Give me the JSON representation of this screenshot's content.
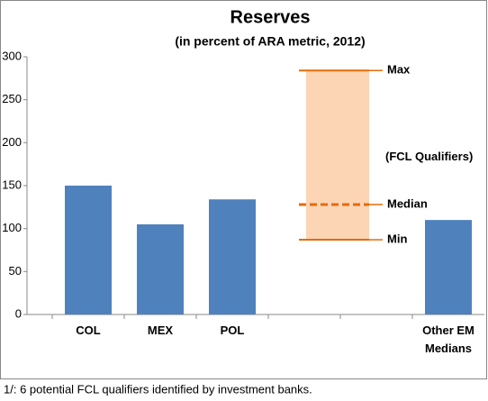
{
  "chart_data": {
    "type": "bar",
    "title": "Reserves",
    "subtitle": "(in percent of  ARA metric, 2012)",
    "categories": [
      "COL",
      "MEX",
      "POL",
      null,
      null,
      "Other EM Medians"
    ],
    "values": [
      150,
      105,
      134,
      null,
      null,
      110
    ],
    "color": "#4f81bd",
    "ylim": [
      0,
      300
    ],
    "yticks": [
      0,
      50,
      100,
      150,
      200,
      250,
      300
    ],
    "range": {
      "label": "(FCL Qualifiers)",
      "color": "#fcd5b5",
      "line_color": "#e46c0a",
      "max": {
        "name": "Max",
        "value": 284
      },
      "median": {
        "name": "Median",
        "value": 128
      },
      "min": {
        "name": "Min",
        "value": 87
      }
    },
    "footnote": "1/:  6 potential  FCL qualifiers identified by investment banks."
  }
}
